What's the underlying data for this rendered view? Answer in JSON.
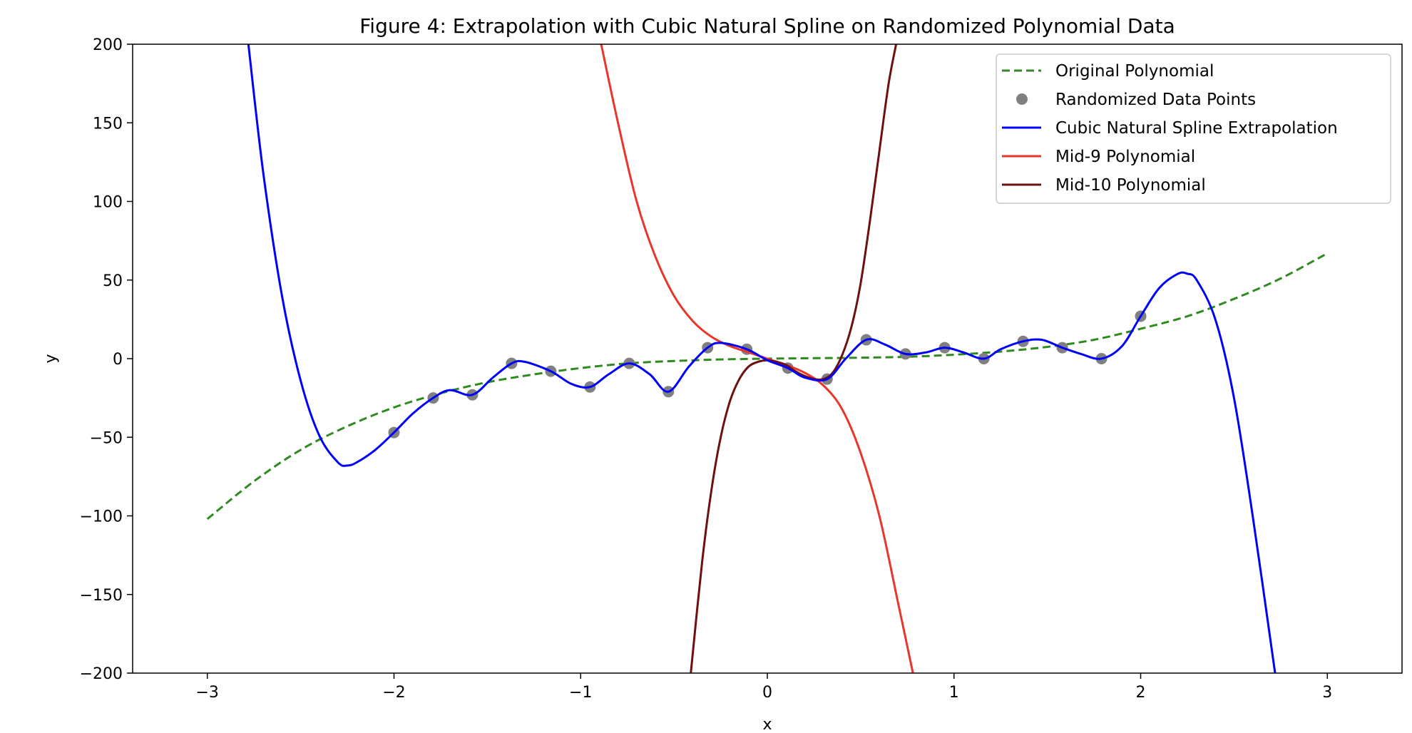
{
  "chart_data": {
    "type": "line",
    "title": "Figure 4: Extrapolation with Cubic Natural Spline on Randomized Polynomial Data",
    "xlabel": "x",
    "ylabel": "y",
    "xlim": [
      -3.4,
      3.4
    ],
    "ylim": [
      -200,
      200
    ],
    "xticks": [
      -3,
      -2,
      -1,
      0,
      1,
      2,
      3
    ],
    "xtick_labels": [
      "−3",
      "−2",
      "−1",
      "0",
      "1",
      "2",
      "3"
    ],
    "yticks": [
      200,
      150,
      100,
      50,
      0,
      -50,
      -100,
      -150,
      -200
    ],
    "ytick_labels": [
      "200",
      "150",
      "100",
      "50",
      "0",
      "−50",
      "−100",
      "−150",
      "−200"
    ],
    "grid": false,
    "legend_position": "top-right",
    "series": [
      {
        "name": "Original Polynomial",
        "style": "dashed",
        "color": "#2e8b1f",
        "x": [
          -3,
          -2.75,
          -2.5,
          -2.25,
          -2,
          -1.75,
          -1.5,
          -1.25,
          -1,
          -0.75,
          -0.5,
          -0.25,
          0,
          0.25,
          0.5,
          0.75,
          1,
          1.25,
          1.5,
          1.75,
          2,
          2.25,
          2.5,
          2.75,
          3
        ],
        "y": [
          -102,
          -78,
          -58,
          -43,
          -31,
          -22,
          -15,
          -10,
          -6,
          -3,
          -1.5,
          -0.5,
          0,
          0.3,
          0.6,
          1.2,
          2.5,
          4.5,
          7.5,
          12,
          19,
          27,
          38,
          51,
          67
        ]
      },
      {
        "name": "Randomized Data Points",
        "style": "scatter",
        "color": "#808080",
        "x": [
          -2,
          -1.79,
          -1.58,
          -1.37,
          -1.16,
          -0.95,
          -0.74,
          -0.53,
          -0.32,
          -0.11,
          0.11,
          0.32,
          0.53,
          0.74,
          0.95,
          1.16,
          1.37,
          1.58,
          1.79,
          2
        ],
        "y": [
          -47,
          -25,
          -23,
          -3,
          -8,
          -18,
          -3,
          -21,
          7,
          6,
          -6,
          -13,
          12,
          3,
          7,
          0,
          11,
          7,
          0,
          27
        ]
      },
      {
        "name": "Cubic Natural Spline Extrapolation",
        "style": "solid",
        "color": "#0000ff",
        "x": [
          -2.78,
          -2.7,
          -2.6,
          -2.5,
          -2.4,
          -2.3,
          -2.25,
          -2.2,
          -2.1,
          -2,
          -1.9,
          -1.79,
          -1.7,
          -1.58,
          -1.47,
          -1.37,
          -1.3,
          -1.16,
          -1.05,
          -0.95,
          -0.85,
          -0.74,
          -0.63,
          -0.53,
          -0.42,
          -0.32,
          -0.25,
          -0.11,
          0,
          0.11,
          0.2,
          0.32,
          0.42,
          0.53,
          0.63,
          0.74,
          0.85,
          0.95,
          1.05,
          1.16,
          1.25,
          1.37,
          1.47,
          1.58,
          1.68,
          1.79,
          1.9,
          2,
          2.1,
          2.2,
          2.25,
          2.3,
          2.4,
          2.5,
          2.6,
          2.72
        ],
        "y": [
          200,
          118,
          40,
          -14,
          -49,
          -66,
          -68,
          -66,
          -58,
          -47,
          -35,
          -25,
          -20,
          -23,
          -12,
          -3,
          -2,
          -8,
          -16,
          -18,
          -10,
          -3,
          -10,
          -21,
          -5,
          7,
          10,
          6,
          -1,
          -6,
          -12,
          -13,
          0,
          12,
          9,
          3,
          4,
          7,
          4,
          0,
          6,
          11,
          12,
          7,
          3,
          0,
          8,
          27,
          45,
          54,
          54,
          50,
          25,
          -25,
          -100,
          -200
        ]
      },
      {
        "name": "Mid-9 Polynomial",
        "style": "solid",
        "color": "#e8362b",
        "x": [
          -0.89,
          -0.8,
          -0.7,
          -0.6,
          -0.5,
          -0.4,
          -0.3,
          -0.2,
          -0.1,
          0,
          0.1,
          0.2,
          0.3,
          0.4,
          0.5,
          0.6,
          0.7,
          0.78
        ],
        "y": [
          200,
          150,
          100,
          65,
          40,
          24,
          14,
          8,
          4,
          0,
          -4,
          -9,
          -17,
          -32,
          -60,
          -100,
          -155,
          -200
        ]
      },
      {
        "name": "Mid-10 Polynomial",
        "style": "solid",
        "color": "#6e1010",
        "x": [
          -0.41,
          -0.35,
          -0.3,
          -0.25,
          -0.2,
          -0.15,
          -0.1,
          -0.05,
          0,
          0.05,
          0.1,
          0.15,
          0.2,
          0.25,
          0.3,
          0.35,
          0.4,
          0.45,
          0.5,
          0.55,
          0.6,
          0.65,
          0.69
        ],
        "y": [
          -200,
          -130,
          -84,
          -50,
          -27,
          -13,
          -5,
          -2,
          -1,
          -2,
          -4,
          -8,
          -11,
          -13,
          -13,
          -9,
          2,
          20,
          48,
          88,
          132,
          175,
          200
        ]
      }
    ]
  }
}
